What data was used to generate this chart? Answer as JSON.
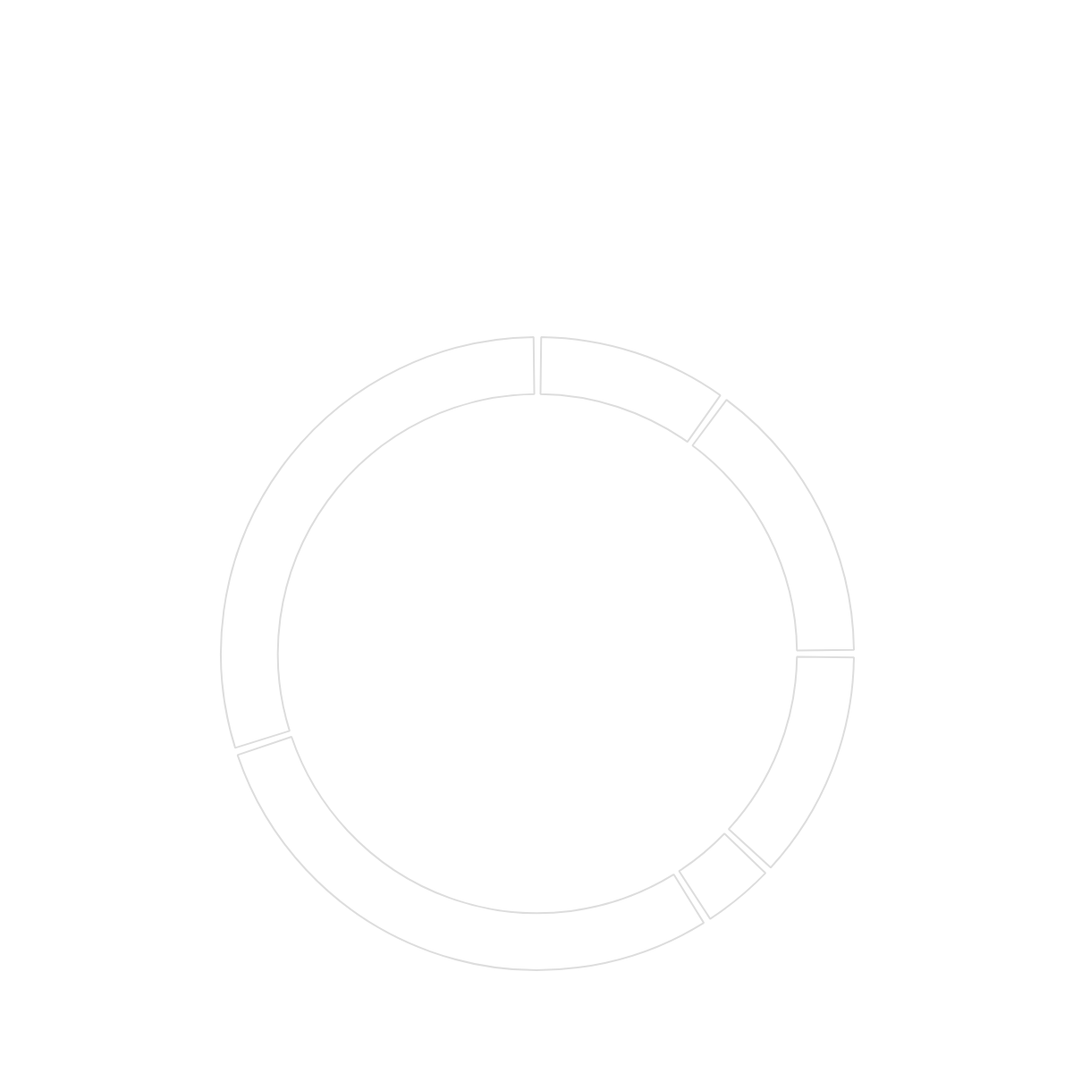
{
  "chart_data": {
    "type": "donut",
    "categories": [
      null,
      null,
      null,
      null,
      null,
      null
    ],
    "values": [
      10,
      15,
      12,
      4,
      29,
      30
    ],
    "colors": [
      "#ffffff",
      "#ffffff",
      "#ffffff",
      "#ffffff",
      "#ffffff",
      "#ffffff"
    ]
  }
}
